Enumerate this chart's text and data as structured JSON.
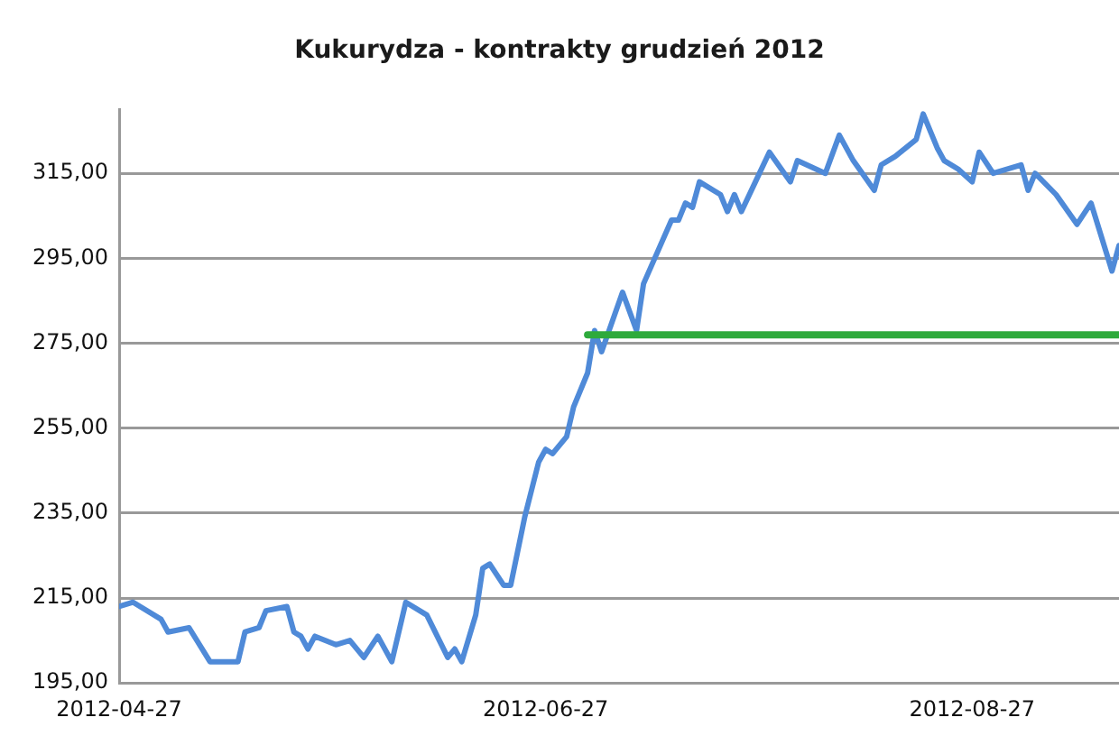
{
  "chart_data": {
    "type": "line",
    "title": "Kukurydza - kontrakty grudzień 2012",
    "xlim": [
      "2012-04-27",
      "2012-09-17"
    ],
    "xticks": [
      "2012-04-27",
      "2012-06-27",
      "2012-08-27"
    ],
    "ylim": [
      195,
      330
    ],
    "yticks": [
      {
        "value": 195,
        "label": "195,00"
      },
      {
        "value": 215,
        "label": "215,00"
      },
      {
        "value": 235,
        "label": "235,00"
      },
      {
        "value": 255,
        "label": "255,00"
      },
      {
        "value": 275,
        "label": "275,00"
      },
      {
        "value": 295,
        "label": "295,00"
      },
      {
        "value": 315,
        "label": "315,00"
      }
    ],
    "grid": "y",
    "legend": false,
    "marker": "none",
    "series": [
      {
        "color": "#4f8ad8",
        "x": [
          "2012-04-27",
          "2012-04-29",
          "2012-05-03",
          "2012-05-04",
          "2012-05-07",
          "2012-05-10",
          "2012-05-14",
          "2012-05-15",
          "2012-05-17",
          "2012-05-18",
          "2012-05-21",
          "2012-05-22",
          "2012-05-23",
          "2012-05-24",
          "2012-05-25",
          "2012-05-28",
          "2012-05-30",
          "2012-06-01",
          "2012-06-03",
          "2012-06-05",
          "2012-06-07",
          "2012-06-10",
          "2012-06-13",
          "2012-06-14",
          "2012-06-15",
          "2012-06-17",
          "2012-06-18",
          "2012-06-19",
          "2012-06-21",
          "2012-06-22",
          "2012-06-24",
          "2012-06-26",
          "2012-06-27",
          "2012-06-28",
          "2012-06-30",
          "2012-07-01",
          "2012-07-03",
          "2012-07-04",
          "2012-07-05",
          "2012-07-08",
          "2012-07-10",
          "2012-07-11",
          "2012-07-15",
          "2012-07-16",
          "2012-07-17",
          "2012-07-18",
          "2012-07-19",
          "2012-07-22",
          "2012-07-23",
          "2012-07-24",
          "2012-07-25",
          "2012-07-27",
          "2012-07-29",
          "2012-08-01",
          "2012-08-02",
          "2012-08-06",
          "2012-08-08",
          "2012-08-10",
          "2012-08-13",
          "2012-08-14",
          "2012-08-16",
          "2012-08-19",
          "2012-08-20",
          "2012-08-22",
          "2012-08-23",
          "2012-08-25",
          "2012-08-27",
          "2012-08-28",
          "2012-08-30",
          "2012-09-03",
          "2012-09-04",
          "2012-09-05",
          "2012-09-08",
          "2012-09-11",
          "2012-09-13",
          "2012-09-16",
          "2012-09-17"
        ],
        "values": [
          213,
          214,
          210,
          207,
          208,
          200,
          200,
          207,
          208,
          212,
          213,
          207,
          206,
          203,
          206,
          204,
          205,
          201,
          206,
          200,
          214,
          211,
          201,
          203,
          200,
          211,
          222,
          223,
          218,
          218,
          234,
          247,
          250,
          249,
          253,
          260,
          268,
          278,
          273,
          287,
          278,
          289,
          304,
          304,
          308,
          307,
          313,
          310,
          306,
          310,
          306,
          313,
          320,
          313,
          318,
          315,
          324,
          318,
          311,
          317,
          319,
          323,
          329,
          321,
          318,
          316,
          313,
          320,
          315,
          317,
          311,
          315,
          310,
          303,
          308,
          292,
          298
        ]
      },
      {
        "color": "#2eaa3c",
        "x": [
          "2012-07-03",
          "2012-09-17"
        ],
        "values": [
          277,
          277
        ]
      }
    ]
  }
}
